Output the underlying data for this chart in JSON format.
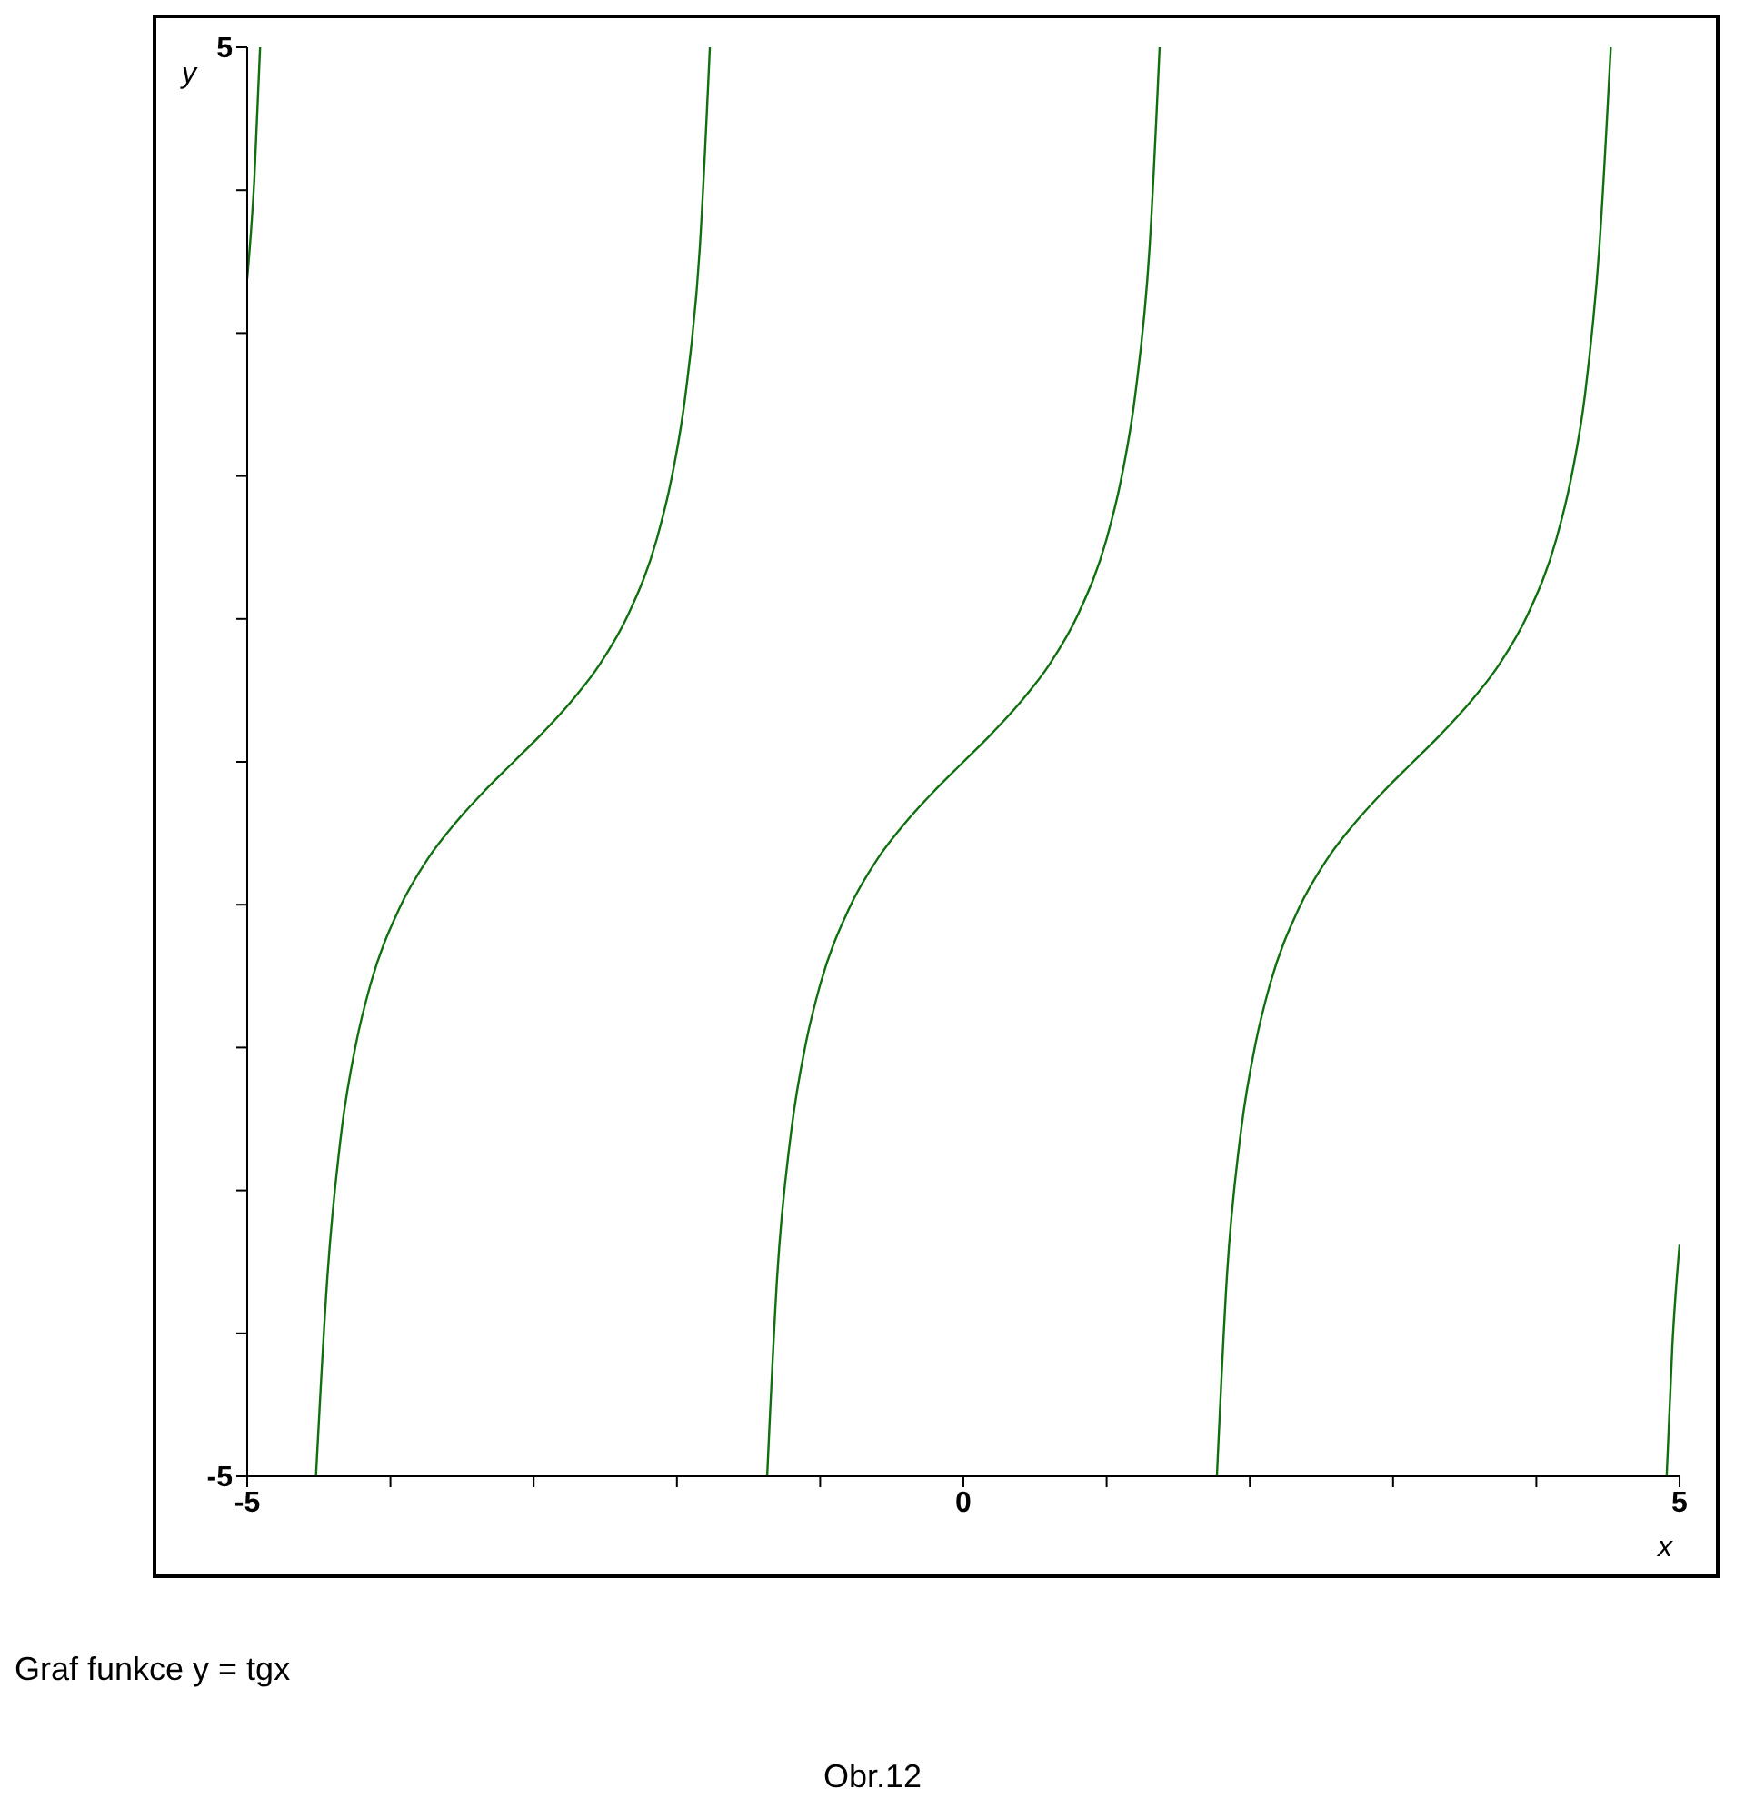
{
  "chart_data": {
    "type": "line",
    "xlabel": "x",
    "ylabel": "y",
    "xlim": [
      -5,
      5
    ],
    "ylim": [
      -5,
      5
    ],
    "xticks": [
      -5,
      {
        "value": -4,
        "label": null
      },
      {
        "value": -3,
        "label": null
      },
      {
        "value": -2,
        "label": null
      },
      {
        "value": -1,
        "label": null
      },
      0,
      {
        "value": 1,
        "label": null
      },
      {
        "value": 2,
        "label": null
      },
      {
        "value": 3,
        "label": null
      },
      {
        "value": 4,
        "label": null
      },
      5
    ],
    "yticks": [
      -5,
      {
        "value": -4,
        "label": null
      },
      {
        "value": -3,
        "label": null
      },
      {
        "value": -2,
        "label": null
      },
      {
        "value": -1,
        "label": null
      },
      {
        "value": 0,
        "label": null
      },
      {
        "value": 1,
        "label": null
      },
      {
        "value": 2,
        "label": null
      },
      {
        "value": 3,
        "label": null
      },
      {
        "value": 4,
        "label": null
      },
      5
    ],
    "grid": false,
    "marker": "none",
    "line_style": "solid",
    "x": [
      -5,
      -4.95,
      -4.91,
      -4.9,
      -4.52,
      -4.44,
      -4.34,
      -4.24,
      -4.14,
      -3.94,
      -3.74,
      -3.54,
      -3.34,
      -3.14,
      -2.94,
      -2.74,
      -2.54,
      -2.34,
      -2.14,
      -2.04,
      -1.94,
      -1.84,
      -1.77,
      -1.5,
      -1.37,
      -1.3,
      -1.2,
      -1.1,
      -1.0,
      -0.8,
      -0.6,
      -0.4,
      -0.2,
      0,
      0.2,
      0.4,
      0.6,
      0.8,
      1.0,
      1.1,
      1.2,
      1.3,
      1.37,
      1.5,
      1.77,
      1.84,
      1.94,
      2.04,
      2.14,
      2.34,
      2.54,
      2.74,
      2.94,
      3.14,
      3.34,
      3.54,
      3.74,
      3.94,
      4.14,
      4.24,
      4.34,
      4.44,
      4.52,
      4.7,
      4.91,
      4.95,
      5
    ],
    "series": [
      {
        "color": "#107010",
        "values": [
          3.38,
          4.08,
          5.0,
          null,
          -5.0,
          -3.6,
          -2.57,
          -1.97,
          -1.56,
          -1.03,
          -0.68,
          -0.42,
          -0.2,
          0,
          0.2,
          0.42,
          0.68,
          1.03,
          1.56,
          1.97,
          2.57,
          3.6,
          5.0,
          null,
          -5.0,
          -3.6,
          -2.57,
          -1.97,
          -1.56,
          -1.03,
          -0.68,
          -0.42,
          -0.2,
          0,
          0.2,
          0.42,
          0.68,
          1.03,
          1.56,
          1.97,
          2.57,
          3.6,
          5.0,
          null,
          -5.0,
          -3.6,
          -2.57,
          -1.97,
          -1.56,
          -1.03,
          -0.68,
          -0.42,
          -0.2,
          0,
          0.2,
          0.42,
          0.68,
          1.03,
          1.56,
          1.97,
          2.57,
          3.6,
          5.0,
          null,
          -5.0,
          -4.08,
          -3.38
        ]
      }
    ],
    "annotations": [
      "Graf funkce y = tgx",
      "Obr.12"
    ]
  }
}
